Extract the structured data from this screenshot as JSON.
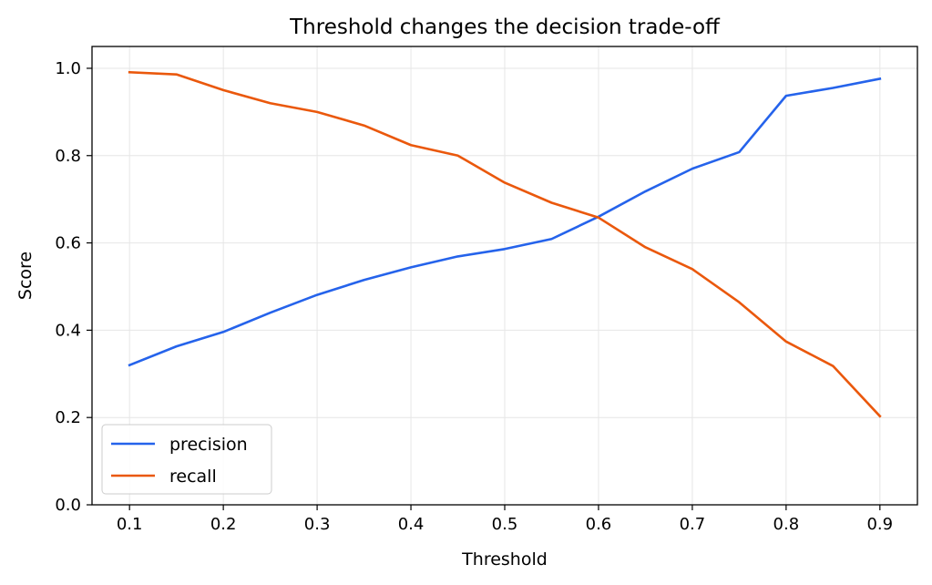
{
  "chart_data": {
    "type": "line",
    "title": "Threshold changes the decision trade-off",
    "xlabel": "Threshold",
    "ylabel": "Score",
    "x": [
      0.1,
      0.15,
      0.2,
      0.25,
      0.3,
      0.35,
      0.4,
      0.45,
      0.5,
      0.55,
      0.6,
      0.65,
      0.7,
      0.75,
      0.8,
      0.85,
      0.9
    ],
    "xlim": [
      0.06,
      0.94
    ],
    "ylim": [
      0.0,
      1.05
    ],
    "xticks": [
      0.1,
      0.2,
      0.3,
      0.4,
      0.5,
      0.6,
      0.7,
      0.8,
      0.9
    ],
    "xtick_labels": [
      "0.1",
      "0.2",
      "0.3",
      "0.4",
      "0.5",
      "0.6",
      "0.7",
      "0.8",
      "0.9"
    ],
    "yticks": [
      0.0,
      0.2,
      0.4,
      0.6,
      0.8,
      1.0
    ],
    "ytick_labels": [
      "0.0",
      "0.2",
      "0.4",
      "0.6",
      "0.8",
      "1.0"
    ],
    "grid": true,
    "legend_position": "lower-left",
    "series": [
      {
        "name": "precision",
        "color": "#2563eb",
        "values": [
          0.32,
          0.363,
          0.396,
          0.44,
          0.481,
          0.515,
          0.544,
          0.569,
          0.586,
          0.609,
          0.66,
          0.718,
          0.77,
          0.808,
          0.937,
          0.955,
          0.976
        ]
      },
      {
        "name": "recall",
        "color": "#ea580c",
        "values": [
          0.991,
          0.986,
          0.95,
          0.92,
          0.9,
          0.869,
          0.824,
          0.8,
          0.738,
          0.692,
          0.658,
          0.59,
          0.54,
          0.464,
          0.374,
          0.318,
          0.203
        ]
      }
    ]
  }
}
